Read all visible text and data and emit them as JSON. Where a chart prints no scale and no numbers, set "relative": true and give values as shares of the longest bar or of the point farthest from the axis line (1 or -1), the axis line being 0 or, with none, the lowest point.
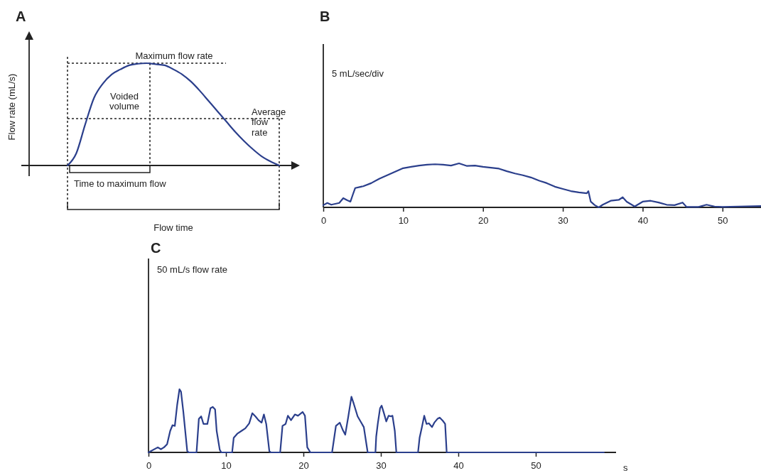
{
  "chart_data": [
    {
      "type": "line",
      "title": "A",
      "xlabel": "Flow time",
      "ylabel": "Flow rate (mL/s)",
      "relative": true,
      "categories": [
        null,
        null,
        null,
        null,
        null,
        null,
        null,
        null,
        null,
        null,
        null,
        null,
        null,
        null,
        null,
        null,
        null,
        null,
        null,
        null,
        null,
        null,
        null,
        null,
        null
      ],
      "series": [
        {
          "color": "#2b3f8c",
          "values": [
            0,
            0.12,
            0.4,
            0.66,
            0.8,
            0.89,
            0.94,
            0.98,
            0.995,
            1,
            0.99,
            0.98,
            0.94,
            0.89,
            0.82,
            0.73,
            0.63,
            0.53,
            0.43,
            0.33,
            0.24,
            0.16,
            0.09,
            0.04,
            0
          ]
        }
      ],
      "annotations": [
        "Voided volume",
        "Time to maximum flow",
        "Maximum flow rate",
        "Average flow rate"
      ]
    },
    {
      "type": "line",
      "title": "B",
      "relative": true,
      "xlim": [
        0,
        55
      ],
      "xticks": [
        0,
        10,
        20,
        30,
        40,
        50
      ],
      "series": [
        {
          "color": "#2b3f8c",
          "x": [
            0,
            0.5,
            1,
            2,
            2.5,
            3,
            3.4,
            3.7,
            4,
            5,
            6,
            7,
            8,
            9,
            10,
            11,
            12,
            13,
            14,
            15,
            16,
            17,
            18,
            19,
            20,
            21,
            22,
            23,
            24,
            25,
            26,
            27,
            28,
            29,
            30,
            31,
            32,
            33,
            33.2,
            33.5,
            34,
            34.5,
            35,
            36,
            37,
            37.5,
            38,
            39,
            40,
            41,
            42,
            43,
            44,
            45,
            45.5,
            47,
            48,
            49,
            50,
            52,
            55
          ],
          "values": [
            0.05,
            0.1,
            0.06,
            0.1,
            0.21,
            0.16,
            0.13,
            0.29,
            0.44,
            0.48,
            0.55,
            0.65,
            0.73,
            0.81,
            0.89,
            0.92,
            0.95,
            0.97,
            0.98,
            0.97,
            0.95,
            1,
            0.94,
            0.95,
            0.92,
            0.9,
            0.88,
            0.82,
            0.77,
            0.73,
            0.68,
            0.61,
            0.55,
            0.47,
            0.42,
            0.37,
            0.34,
            0.32,
            0.37,
            0.13,
            0.05,
            0,
            0.06,
            0.15,
            0.17,
            0.23,
            0.13,
            0.02,
            0.13,
            0.15,
            0.11,
            0.06,
            0.05,
            0.11,
            0.01,
            0.01,
            0.06,
            0.02,
            0.01,
            0.02,
            0.03
          ]
        }
      ],
      "annotations": [
        "5 mL/sec/div"
      ]
    },
    {
      "type": "line",
      "title": "C",
      "xlabel": "s",
      "relative": true,
      "xlim": [
        0,
        60
      ],
      "xticks": [
        0,
        10,
        20,
        30,
        40,
        50
      ],
      "series": [
        {
          "color": "#2b3f8c",
          "x": [
            0,
            1.2,
            1.6,
            2.0,
            2.4,
            2.8,
            3.1,
            3.4,
            3.7,
            4.0,
            4.2,
            4.5,
            5.0,
            5.2,
            6.2,
            6.5,
            6.8,
            7.1,
            7.6,
            8.0,
            8.3,
            8.6,
            8.8,
            9.2,
            9.4,
            10.8,
            11.0,
            11.5,
            12.0,
            12.5,
            13.0,
            13.4,
            13.8,
            14.2,
            14.6,
            14.9,
            15.2,
            15.6,
            15.8,
            17.0,
            17.3,
            17.7,
            18.0,
            18.4,
            18.9,
            19.3,
            19.9,
            20.2,
            20.5,
            20.9,
            23.7,
            24.2,
            24.7,
            25.1,
            25.4,
            25.8,
            26.2,
            26.5,
            27.0,
            27.8,
            28.3,
            29.3,
            29.4,
            29.6,
            29.9,
            30.1,
            30.4,
            30.7,
            31.0,
            31.3,
            31.5,
            31.8,
            32.0,
            34.8,
            35.0,
            35.3,
            35.6,
            35.9,
            36.2,
            36.6,
            36.9,
            37.3,
            37.6,
            38.0,
            38.3,
            38.5,
            58.8
          ],
          "values": [
            0,
            0.08,
            0.05,
            0.08,
            0.13,
            0.34,
            0.43,
            0.42,
            0.75,
            1,
            0.96,
            0.64,
            0.02,
            0,
            0,
            0.53,
            0.57,
            0.45,
            0.45,
            0.7,
            0.72,
            0.68,
            0.34,
            0.04,
            0,
            0,
            0.23,
            0.3,
            0.34,
            0.38,
            0.46,
            0.62,
            0.57,
            0.51,
            0.47,
            0.6,
            0.45,
            0.02,
            0,
            0,
            0.42,
            0.45,
            0.58,
            0.51,
            0.6,
            0.58,
            0.64,
            0.58,
            0.08,
            0,
            0,
            0.42,
            0.47,
            0.35,
            0.28,
            0.57,
            0.88,
            0.77,
            0.57,
            0.4,
            0,
            0,
            0.25,
            0.45,
            0.7,
            0.74,
            0.62,
            0.49,
            0.58,
            0.57,
            0.58,
            0.34,
            0,
            0,
            0.23,
            0.4,
            0.58,
            0.45,
            0.46,
            0.4,
            0.47,
            0.53,
            0.55,
            0.5,
            0.45,
            0,
            0
          ]
        }
      ],
      "annotations": [
        "50 mL/s flow rate"
      ]
    }
  ]
}
